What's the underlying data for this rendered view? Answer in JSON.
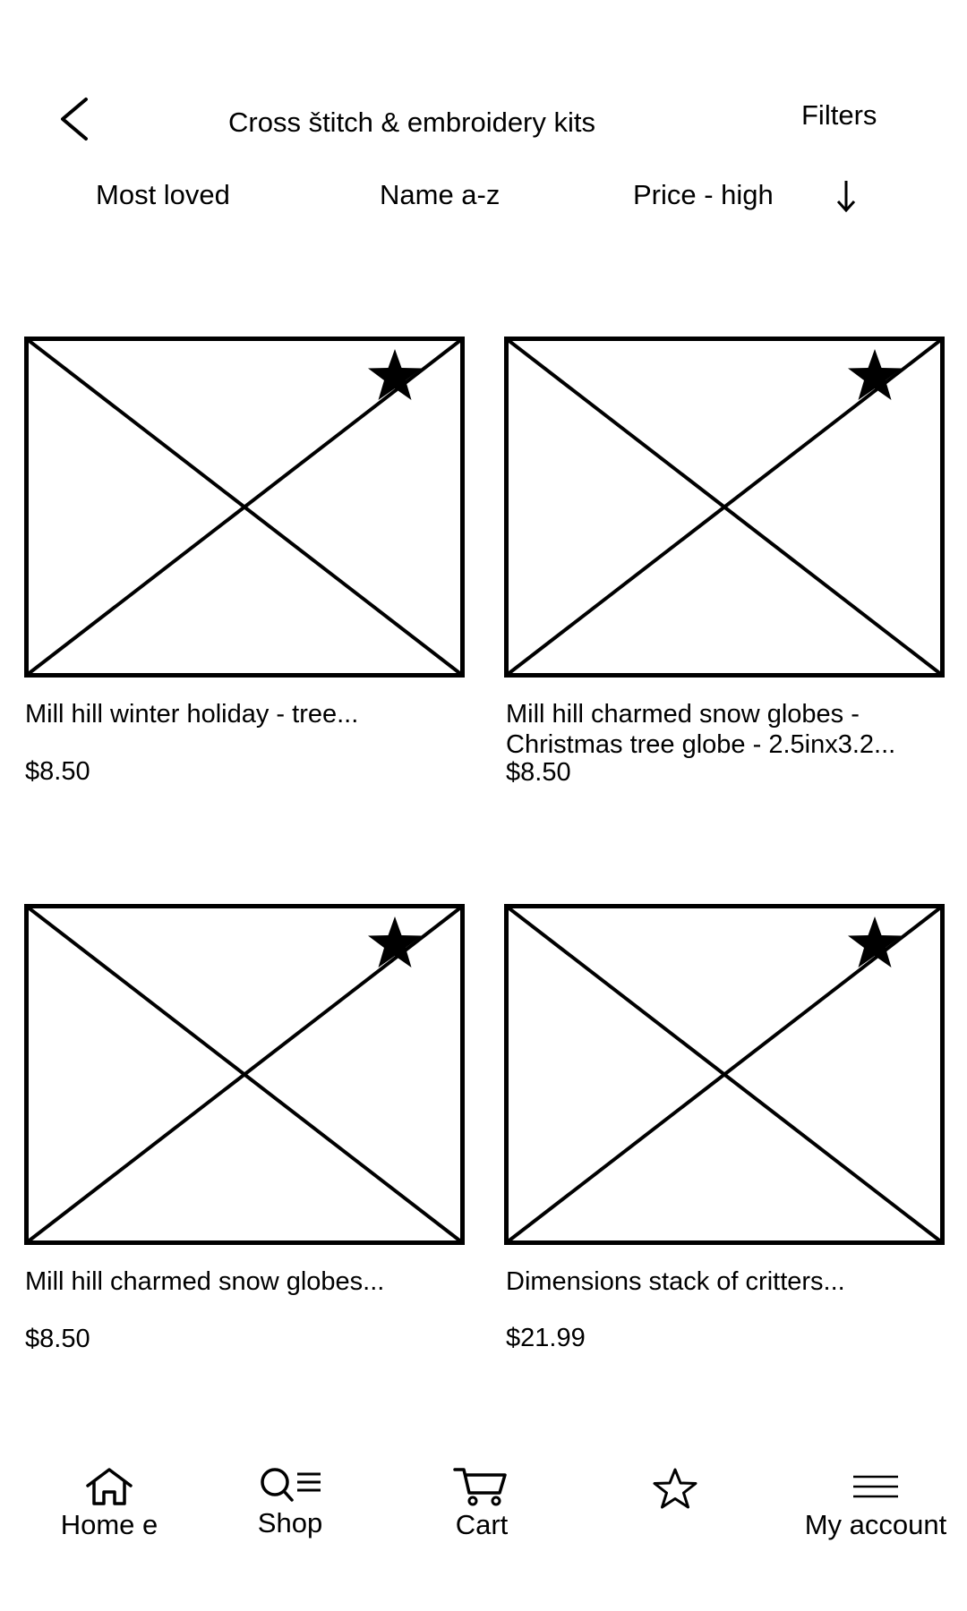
{
  "header": {
    "back_icon": "chevron-left-icon",
    "title": "Cross štitch & embroidery kits",
    "filters_label": "Filters"
  },
  "sort": {
    "most_loved": "Most loved",
    "name": "Name a-z",
    "price": "Price - high",
    "direction_icon": "arrow-down-icon"
  },
  "products": [
    {
      "name": "Mill hill winter holiday - tree...",
      "price": "$8.50",
      "favorite_icon": "star-filled-icon"
    },
    {
      "name_line1": "Mill hill charmed snow globes -",
      "name_line2": "Christmas tree globe - 2.5inx3.2...",
      "price": "$8.50",
      "favorite_icon": "star-filled-icon"
    },
    {
      "name": "Mill hill charmed snow globes...",
      "price": "$8.50",
      "favorite_icon": "star-filled-icon"
    },
    {
      "name": "Dimensions stack of critters...",
      "price": "$21.99",
      "favorite_icon": "star-filled-icon"
    }
  ],
  "nav": {
    "home": "Home e",
    "shop": "Shop",
    "cart": "Cart",
    "favorites_icon": "star-outline-icon",
    "account": "My account"
  },
  "colors": {
    "ink": "#000000",
    "background": "#ffffff"
  }
}
